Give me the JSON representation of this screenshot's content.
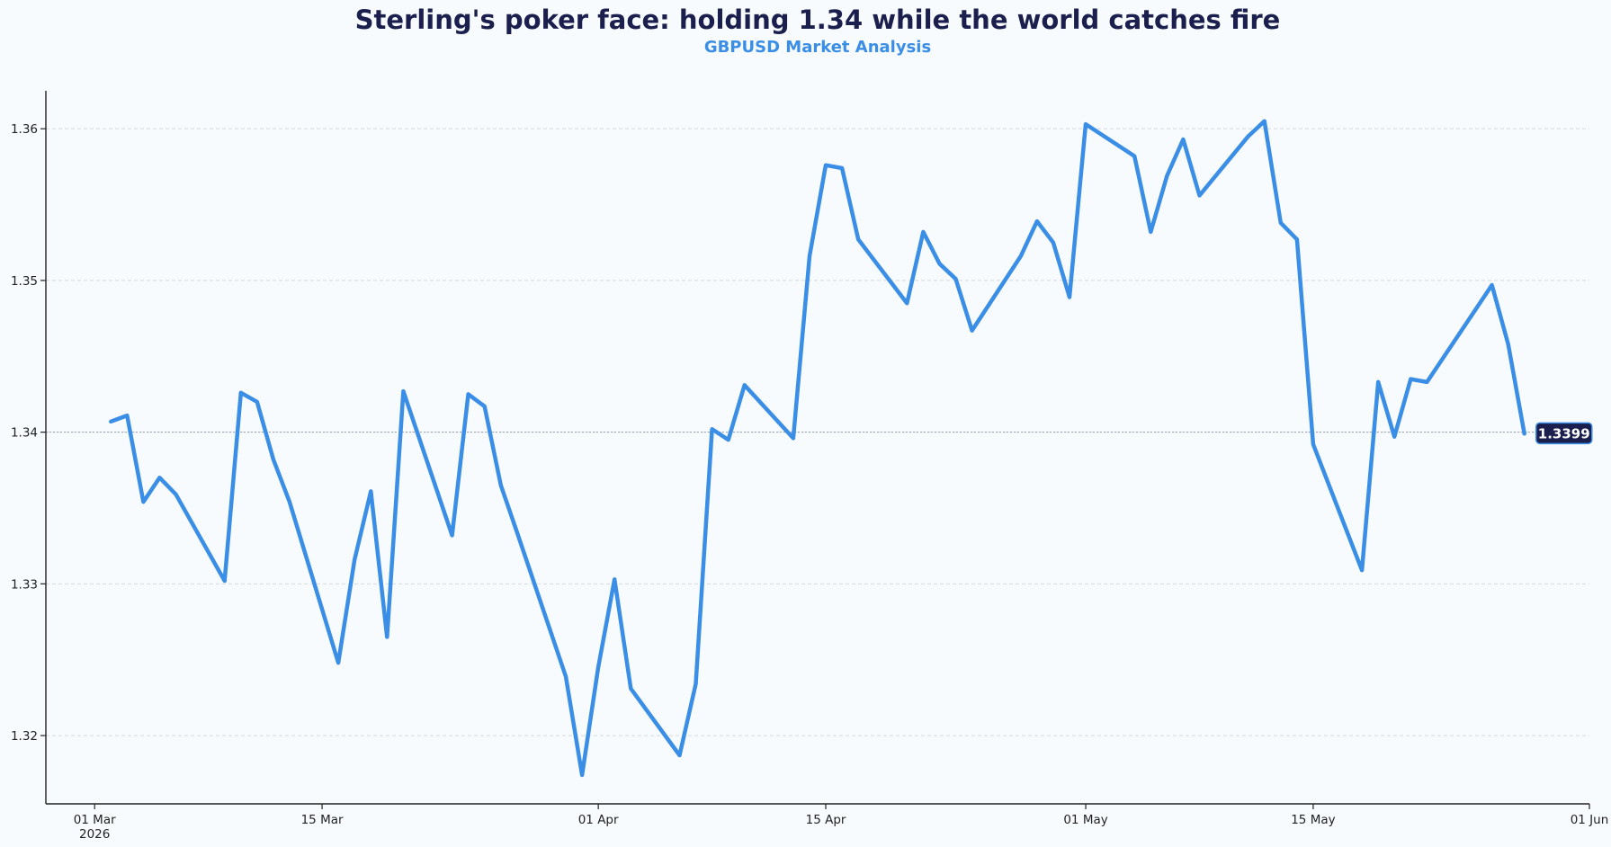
{
  "chart_data": {
    "type": "line",
    "title": "Sterling's poker face: holding 1.34 while the world catches fire",
    "subtitle": "GBPUSD Market Analysis",
    "xlabel": "",
    "ylabel": "",
    "x_range": [
      "2026-02-26",
      "2026-06-01"
    ],
    "ylim": [
      1.3155,
      1.3625
    ],
    "grid": "horizontal dashed",
    "x_ticks": [
      {
        "date": "2026-03-01",
        "label": "01 Mar",
        "sublabel": "2026"
      },
      {
        "date": "2026-03-15",
        "label": "15 Mar",
        "sublabel": ""
      },
      {
        "date": "2026-04-01",
        "label": "01 Apr",
        "sublabel": ""
      },
      {
        "date": "2026-04-15",
        "label": "15 Apr",
        "sublabel": ""
      },
      {
        "date": "2026-05-01",
        "label": "01 May",
        "sublabel": ""
      },
      {
        "date": "2026-05-15",
        "label": "15 May",
        "sublabel": ""
      },
      {
        "date": "2026-06-01",
        "label": "01 Jun",
        "sublabel": ""
      }
    ],
    "y_ticks": [
      {
        "value": 1.32,
        "label": "1.32"
      },
      {
        "value": 1.33,
        "label": "1.33"
      },
      {
        "value": 1.34,
        "label": "1.34"
      },
      {
        "value": 1.35,
        "label": "1.35"
      },
      {
        "value": 1.36,
        "label": "1.36"
      }
    ],
    "reference_line": 1.34,
    "last_value_label": "1.3399",
    "series": [
      {
        "color": "#3a8ee6",
        "points": [
          [
            "2026-03-02",
            1.3407
          ],
          [
            "2026-03-03",
            1.3411
          ],
          [
            "2026-03-04",
            1.3354
          ],
          [
            "2026-03-05",
            1.337
          ],
          [
            "2026-03-06",
            1.3359
          ],
          [
            "2026-03-09",
            1.3302
          ],
          [
            "2026-03-10",
            1.3426
          ],
          [
            "2026-03-11",
            1.342
          ],
          [
            "2026-03-12",
            1.3382
          ],
          [
            "2026-03-13",
            1.3354
          ],
          [
            "2026-03-16",
            1.3248
          ],
          [
            "2026-03-17",
            1.3316
          ],
          [
            "2026-03-18",
            1.3361
          ],
          [
            "2026-03-19",
            1.3265
          ],
          [
            "2026-03-20",
            1.3427
          ],
          [
            "2026-03-23",
            1.3332
          ],
          [
            "2026-03-24",
            1.3425
          ],
          [
            "2026-03-25",
            1.3417
          ],
          [
            "2026-03-26",
            1.3365
          ],
          [
            "2026-03-27",
            1.3334
          ],
          [
            "2026-03-30",
            1.3239
          ],
          [
            "2026-03-31",
            1.3174
          ],
          [
            "2026-04-01",
            1.3245
          ],
          [
            "2026-04-02",
            1.3303
          ],
          [
            "2026-04-03",
            1.3231
          ],
          [
            "2026-04-06",
            1.3187
          ],
          [
            "2026-04-07",
            1.3234
          ],
          [
            "2026-04-08",
            1.3402
          ],
          [
            "2026-04-09",
            1.3395
          ],
          [
            "2026-04-10",
            1.3431
          ],
          [
            "2026-04-13",
            1.3396
          ],
          [
            "2026-04-14",
            1.3516
          ],
          [
            "2026-04-15",
            1.3576
          ],
          [
            "2026-04-16",
            1.3574
          ],
          [
            "2026-04-17",
            1.3527
          ],
          [
            "2026-04-20",
            1.3485
          ],
          [
            "2026-04-21",
            1.3532
          ],
          [
            "2026-04-22",
            1.3511
          ],
          [
            "2026-04-23",
            1.3501
          ],
          [
            "2026-04-24",
            1.3467
          ],
          [
            "2026-04-27",
            1.3516
          ],
          [
            "2026-04-28",
            1.3539
          ],
          [
            "2026-04-29",
            1.3525
          ],
          [
            "2026-04-30",
            1.3489
          ],
          [
            "2026-05-01",
            1.3603
          ],
          [
            "2026-05-04",
            1.3582
          ],
          [
            "2026-05-05",
            1.3532
          ],
          [
            "2026-05-06",
            1.3569
          ],
          [
            "2026-05-07",
            1.3593
          ],
          [
            "2026-05-08",
            1.3556
          ],
          [
            "2026-05-11",
            1.3595
          ],
          [
            "2026-05-12",
            1.3605
          ],
          [
            "2026-05-13",
            1.3538
          ],
          [
            "2026-05-14",
            1.3527
          ],
          [
            "2026-05-15",
            1.3392
          ],
          [
            "2026-05-18",
            1.3309
          ],
          [
            "2026-05-19",
            1.3433
          ],
          [
            "2026-05-20",
            1.3397
          ],
          [
            "2026-05-21",
            1.3435
          ],
          [
            "2026-05-22",
            1.3433
          ],
          [
            "2026-05-25",
            1.3481
          ],
          [
            "2026-05-26",
            1.3497
          ],
          [
            "2026-05-27",
            1.3458
          ],
          [
            "2026-05-28",
            1.3399
          ]
        ]
      }
    ]
  }
}
